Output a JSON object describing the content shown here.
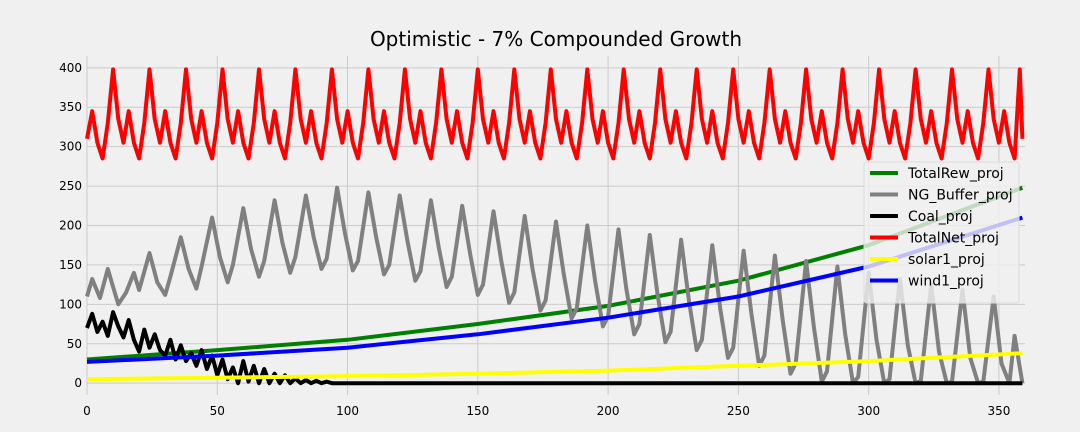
{
  "chart_data": {
    "type": "line",
    "title": "Optimistic - 7% Compounded Growth",
    "xlabel": "",
    "ylabel": "",
    "xlim": [
      0,
      360
    ],
    "ylim": [
      -15,
      415
    ],
    "xticks": [
      0,
      50,
      100,
      150,
      200,
      250,
      300,
      350
    ],
    "yticks": [
      0,
      50,
      100,
      150,
      200,
      250,
      300,
      350,
      400
    ],
    "grid": true,
    "legend_position": "right",
    "colors": {
      "TotalRew_proj": "#008000",
      "NG_Buffer_proj": "#808080",
      "Coal_proj": "#000000",
      "TotalNet_proj": "#ff0000",
      "solar1_proj": "#ffff00",
      "wind1_proj": "#0000ff"
    },
    "series": [
      {
        "name": "TotalRew_proj",
        "x": [
          0,
          50,
          100,
          150,
          200,
          250,
          300,
          359
        ],
        "values": [
          30,
          42,
          55,
          75,
          98,
          130,
          175,
          248
        ]
      },
      {
        "name": "NG_Buffer_proj",
        "x": [
          0,
          2,
          5,
          8,
          10,
          12,
          15,
          18,
          20,
          24,
          27,
          30,
          32,
          36,
          39,
          42,
          44,
          48,
          51,
          54,
          56,
          60,
          63,
          66,
          68,
          72,
          75,
          78,
          80,
          84,
          87,
          90,
          92,
          96,
          99,
          102,
          104,
          108,
          111,
          114,
          116,
          120,
          123,
          126,
          128,
          132,
          135,
          138,
          140,
          144,
          147,
          150,
          152,
          156,
          159,
          162,
          164,
          168,
          171,
          174,
          176,
          180,
          183,
          186,
          188,
          192,
          195,
          198,
          200,
          204,
          207,
          210,
          212,
          216,
          219,
          222,
          224,
          228,
          231,
          234,
          236,
          240,
          243,
          246,
          248,
          252,
          255,
          258,
          260,
          264,
          267,
          270,
          272,
          276,
          279,
          282,
          284,
          288,
          291,
          294,
          296,
          300,
          303,
          306,
          308,
          312,
          315,
          318,
          320,
          324,
          327,
          330,
          332,
          336,
          339,
          342,
          344,
          348,
          351,
          354,
          356,
          359
        ],
        "values": [
          110,
          132,
          108,
          145,
          122,
          100,
          115,
          140,
          118,
          165,
          128,
          112,
          135,
          185,
          145,
          120,
          148,
          210,
          160,
          128,
          150,
          222,
          170,
          135,
          155,
          232,
          178,
          140,
          160,
          238,
          185,
          145,
          158,
          248,
          190,
          143,
          155,
          242,
          185,
          138,
          150,
          238,
          180,
          130,
          142,
          232,
          172,
          122,
          135,
          225,
          165,
          112,
          125,
          218,
          155,
          102,
          115,
          212,
          145,
          92,
          105,
          205,
          138,
          82,
          95,
          200,
          130,
          72,
          85,
          195,
          120,
          62,
          75,
          188,
          112,
          52,
          65,
          182,
          105,
          42,
          55,
          175,
          95,
          32,
          45,
          168,
          88,
          22,
          35,
          162,
          80,
          12,
          25,
          155,
          70,
          2,
          15,
          148,
          62,
          0,
          8,
          140,
          55,
          0,
          5,
          132,
          48,
          0,
          3,
          125,
          40,
          0,
          2,
          118,
          32,
          0,
          2,
          110,
          25,
          0,
          60,
          0
        ]
      },
      {
        "name": "Coal_proj",
        "x": [
          0,
          2,
          4,
          6,
          8,
          10,
          12,
          14,
          16,
          18,
          20,
          22,
          24,
          26,
          28,
          30,
          32,
          34,
          36,
          38,
          40,
          42,
          44,
          46,
          48,
          50,
          52,
          54,
          56,
          58,
          60,
          62,
          64,
          66,
          68,
          70,
          72,
          74,
          76,
          78,
          80,
          82,
          84,
          86,
          88,
          90,
          92,
          94,
          96,
          359
        ],
        "values": [
          70,
          88,
          65,
          78,
          60,
          90,
          72,
          58,
          80,
          55,
          40,
          68,
          45,
          62,
          42,
          35,
          55,
          30,
          48,
          28,
          38,
          22,
          42,
          18,
          35,
          10,
          30,
          5,
          20,
          0,
          28,
          2,
          22,
          0,
          18,
          0,
          12,
          0,
          10,
          0,
          6,
          0,
          4,
          0,
          3,
          0,
          2,
          0,
          0,
          0
        ]
      },
      {
        "name": "TotalNet_proj",
        "x": [
          0,
          2,
          4,
          6,
          8,
          10,
          12,
          14,
          16,
          18,
          20,
          22,
          24,
          26,
          28,
          30,
          32,
          34,
          36,
          38,
          40,
          42,
          44,
          46,
          48,
          50,
          52,
          54,
          56,
          58,
          60,
          62,
          64,
          66,
          68,
          70,
          72,
          74,
          76,
          78,
          80,
          82,
          84,
          86,
          88,
          90,
          92,
          94,
          96,
          98,
          100,
          102,
          104,
          106,
          108,
          110,
          112,
          114,
          116,
          118,
          120,
          122,
          124,
          126,
          128,
          130,
          132,
          134,
          136,
          138,
          140,
          142,
          144,
          146,
          148,
          150,
          152,
          154,
          156,
          158,
          160,
          162,
          164,
          166,
          168,
          170,
          172,
          174,
          176,
          178,
          180,
          182,
          184,
          186,
          188,
          190,
          192,
          194,
          196,
          198,
          200,
          202,
          204,
          206,
          208,
          210,
          212,
          214,
          216,
          218,
          220,
          222,
          224,
          226,
          228,
          230,
          232,
          234,
          236,
          238,
          240,
          242,
          244,
          246,
          248,
          250,
          252,
          254,
          256,
          258,
          260,
          262,
          264,
          266,
          268,
          270,
          272,
          274,
          276,
          278,
          280,
          282,
          284,
          286,
          288,
          290,
          292,
          294,
          296,
          298,
          300,
          302,
          304,
          306,
          308,
          310,
          312,
          314,
          316,
          318,
          320,
          322,
          324,
          326,
          328,
          330,
          332,
          334,
          336,
          338,
          340,
          342,
          344,
          346,
          348,
          350,
          352,
          354,
          356,
          358,
          359
        ],
        "values": [
          310,
          345,
          305,
          285,
          330,
          398,
          335,
          305,
          345,
          305,
          285,
          330,
          398,
          335,
          305,
          345,
          305,
          285,
          330,
          398,
          335,
          305,
          345,
          305,
          285,
          330,
          398,
          335,
          305,
          345,
          305,
          285,
          330,
          398,
          335,
          305,
          345,
          305,
          285,
          330,
          398,
          335,
          305,
          345,
          305,
          285,
          330,
          398,
          335,
          305,
          345,
          305,
          285,
          330,
          398,
          335,
          305,
          345,
          305,
          285,
          330,
          398,
          335,
          305,
          345,
          305,
          285,
          330,
          398,
          335,
          305,
          345,
          305,
          285,
          330,
          398,
          335,
          305,
          345,
          305,
          285,
          330,
          398,
          335,
          305,
          345,
          305,
          285,
          330,
          398,
          335,
          305,
          345,
          305,
          285,
          330,
          398,
          335,
          305,
          345,
          305,
          285,
          330,
          398,
          335,
          305,
          345,
          305,
          285,
          330,
          398,
          335,
          305,
          345,
          305,
          285,
          330,
          398,
          335,
          305,
          345,
          305,
          285,
          330,
          398,
          335,
          305,
          345,
          305,
          285,
          330,
          398,
          335,
          305,
          345,
          305,
          285,
          330,
          398,
          335,
          305,
          345,
          305,
          285,
          330,
          398,
          335,
          305,
          345,
          305,
          285,
          330,
          398,
          335,
          305,
          345,
          305,
          285,
          330,
          398,
          335,
          305,
          345,
          305,
          285,
          330,
          398,
          335,
          305,
          345,
          305,
          285,
          330,
          398,
          335,
          305,
          345,
          305,
          285,
          398,
          310
        ]
      },
      {
        "name": "solar1_proj",
        "x": [
          0,
          50,
          100,
          150,
          200,
          250,
          300,
          359
        ],
        "values": [
          5,
          7,
          9,
          12,
          16,
          22,
          28,
          38
        ]
      },
      {
        "name": "wind1_proj",
        "x": [
          0,
          50,
          100,
          150,
          200,
          250,
          300,
          359
        ],
        "values": [
          27,
          35,
          45,
          62,
          83,
          110,
          148,
          210
        ]
      }
    ]
  }
}
